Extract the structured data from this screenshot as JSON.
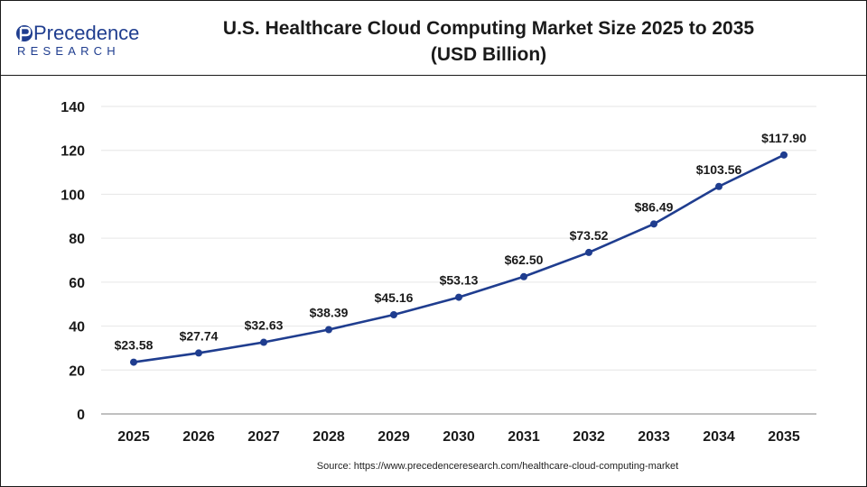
{
  "header": {
    "logo_word": "Precedence",
    "logo_sub": "RESEARCH",
    "title_line1": "U.S. Healthcare Cloud Computing Market Size 2025 to 2035",
    "title_line2": "(USD Billion)"
  },
  "source": "Source: https://www.precedenceresearch.com/healthcare-cloud-computing-market",
  "colors": {
    "line": "#1f3d8f",
    "grid": "#e6e6e6",
    "axis": "#9a9a9a",
    "text": "#1a1a1a",
    "logo": "#1f3d8f"
  },
  "chart_data": {
    "type": "line",
    "x": [
      "2025",
      "2026",
      "2027",
      "2028",
      "2029",
      "2030",
      "2031",
      "2032",
      "2033",
      "2034",
      "2035"
    ],
    "series": [
      {
        "values": [
          23.58,
          27.74,
          32.63,
          38.39,
          45.16,
          53.13,
          62.5,
          73.52,
          86.49,
          103.56,
          117.9
        ],
        "labels": [
          "$23.58",
          "$27.74",
          "$32.63",
          "$38.39",
          "$45.16",
          "$53.13",
          "$62.50",
          "$73.52",
          "$86.49",
          "$103.56",
          "$117.90"
        ]
      }
    ],
    "ylim": [
      0,
      140
    ],
    "yticks": [
      0,
      20,
      40,
      60,
      80,
      100,
      120,
      140
    ],
    "grid": true,
    "legend": "none"
  }
}
